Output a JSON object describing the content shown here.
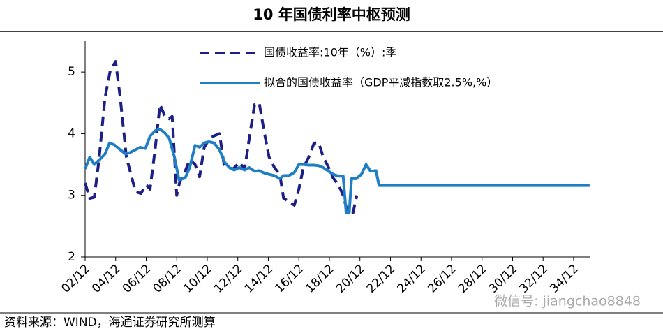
{
  "chart_data": {
    "type": "line",
    "title": "10 年国债利率中枢预测",
    "source": "资料来源：WIND，海通证券研究所测算",
    "watermark": "微信号: jiangchao8848",
    "xlim": [
      2,
      35.1
    ],
    "xticks": [
      {
        "value": 2,
        "label": "02/12"
      },
      {
        "value": 4,
        "label": "04/12"
      },
      {
        "value": 6,
        "label": "06/12"
      },
      {
        "value": 8,
        "label": "08/12"
      },
      {
        "value": 10,
        "label": "10/12"
      },
      {
        "value": 12,
        "label": "12/12"
      },
      {
        "value": 14,
        "label": "14/12"
      },
      {
        "value": 16,
        "label": "16/12"
      },
      {
        "value": 18,
        "label": "18/12"
      },
      {
        "value": 20,
        "label": "20/12"
      },
      {
        "value": 22,
        "label": "22/12"
      },
      {
        "value": 24,
        "label": "24/12"
      },
      {
        "value": 26,
        "label": "26/12"
      },
      {
        "value": 28,
        "label": "28/12"
      },
      {
        "value": 30,
        "label": "30/12"
      },
      {
        "value": 32,
        "label": "32/12"
      },
      {
        "value": 34,
        "label": "34/12"
      }
    ],
    "ylim": [
      2,
      5.5
    ],
    "yticks": [
      2,
      3,
      4,
      5
    ],
    "legend": "top",
    "series": [
      {
        "name": "国债收益率:10年（%）:季",
        "color": "#1c1f86",
        "dashed": true,
        "x": [
          2.0,
          2.3,
          2.6,
          2.9,
          3.3,
          3.65,
          4.0,
          4.3,
          4.7,
          5.0,
          5.3,
          5.65,
          6.0,
          6.25,
          6.6,
          6.9,
          7.2,
          7.5,
          7.7,
          8.0,
          8.2,
          8.55,
          8.85,
          9.2,
          9.5,
          9.8,
          10.1,
          10.4,
          10.8,
          11.1,
          11.4,
          11.7,
          12.1,
          12.45,
          12.8,
          13.1,
          13.4,
          13.75,
          14.05,
          14.4,
          14.75,
          15.0,
          15.35,
          15.7,
          16.0,
          16.3,
          16.65,
          17.0,
          17.3,
          17.6,
          17.95,
          18.25,
          18.6,
          18.9,
          19.2,
          19.55,
          19.8
        ],
        "values": [
          3.2,
          2.95,
          2.97,
          3.56,
          4.58,
          5.03,
          5.17,
          4.58,
          3.62,
          3.34,
          3.06,
          3.03,
          3.17,
          3.1,
          3.78,
          4.47,
          4.3,
          4.24,
          4.28,
          3.0,
          3.22,
          3.39,
          3.58,
          3.5,
          3.3,
          3.78,
          3.9,
          3.96,
          4.0,
          3.5,
          3.45,
          3.43,
          3.53,
          3.43,
          4.0,
          4.47,
          4.5,
          4.0,
          3.62,
          3.45,
          3.34,
          2.95,
          2.9,
          2.84,
          3.1,
          3.45,
          3.62,
          3.85,
          3.85,
          3.62,
          3.45,
          3.28,
          3.17,
          3.0,
          2.72,
          2.72,
          3.0
        ]
      },
      {
        "name": "拟合的国债收益率（GDP平减指数取2.5%,%）",
        "color": "#1f7fc4",
        "dashed": false,
        "x": [
          2.0,
          2.3,
          2.6,
          2.95,
          3.3,
          3.6,
          3.9,
          4.3,
          4.65,
          5.0,
          5.3,
          5.6,
          5.95,
          6.25,
          6.6,
          6.9,
          7.2,
          7.5,
          7.85,
          8.15,
          8.55,
          8.85,
          9.2,
          9.5,
          9.8,
          10.1,
          10.45,
          10.8,
          11.15,
          11.45,
          11.75,
          12.1,
          12.45,
          12.75,
          13.1,
          13.4,
          13.75,
          14.05,
          14.4,
          14.75,
          15.0,
          15.35,
          15.7,
          16.0,
          16.3,
          16.65,
          17.0,
          17.3,
          17.6,
          17.95,
          18.25,
          18.6,
          18.9,
          19.1,
          19.3,
          19.45,
          19.75,
          20.1,
          20.4,
          20.7,
          21.05,
          21.25,
          35.05
        ],
        "values": [
          3.43,
          3.62,
          3.5,
          3.58,
          3.67,
          3.85,
          3.82,
          3.74,
          3.67,
          3.7,
          3.74,
          3.78,
          3.76,
          3.96,
          4.05,
          4.07,
          4.02,
          3.93,
          3.62,
          3.25,
          3.28,
          3.45,
          3.81,
          3.78,
          3.85,
          3.87,
          3.85,
          3.74,
          3.53,
          3.45,
          3.41,
          3.45,
          3.41,
          3.45,
          3.39,
          3.4,
          3.36,
          3.34,
          3.32,
          3.27,
          3.32,
          3.32,
          3.37,
          3.5,
          3.5,
          3.49,
          3.49,
          3.48,
          3.45,
          3.39,
          3.34,
          3.31,
          3.31,
          2.72,
          2.72,
          3.27,
          3.27,
          3.34,
          3.5,
          3.39,
          3.4,
          3.16,
          3.16
        ]
      }
    ]
  }
}
